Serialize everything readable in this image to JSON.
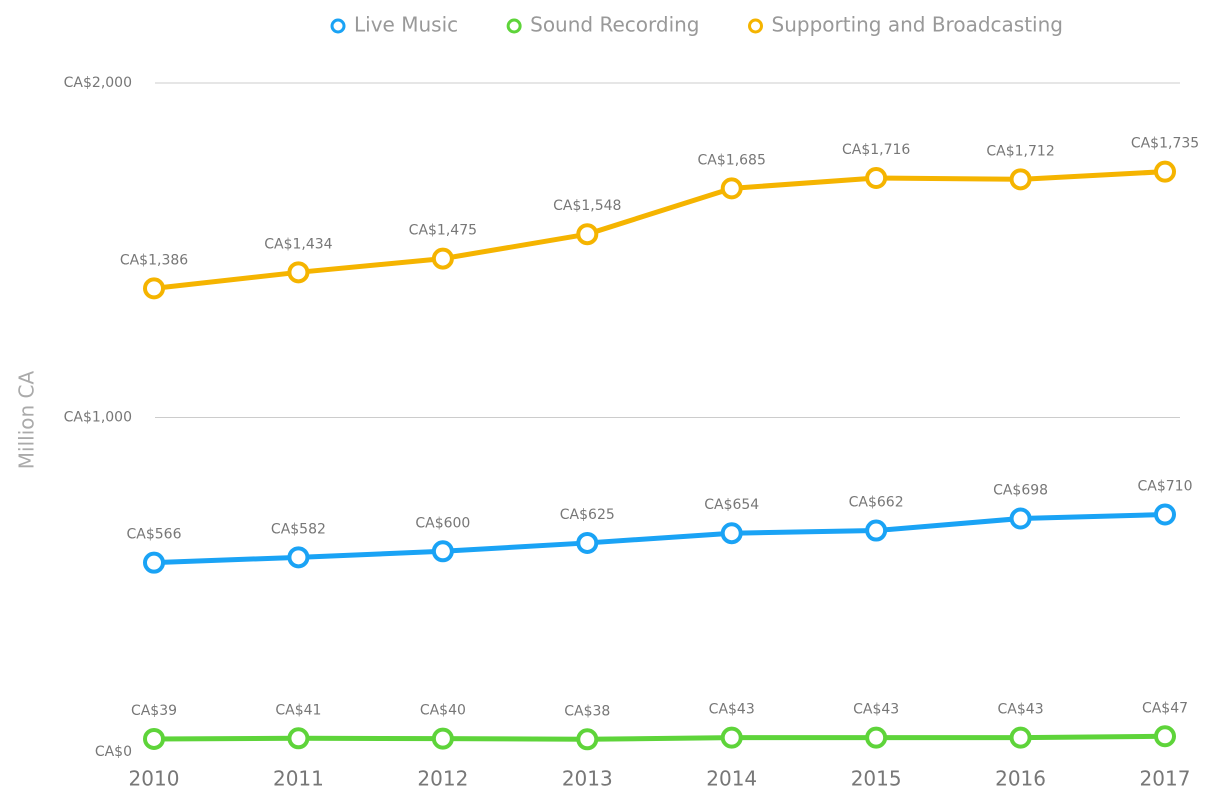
{
  "chart_data": {
    "type": "line",
    "y_label": "Million CA",
    "x": [
      2010,
      2011,
      2012,
      2013,
      2014,
      2015,
      2016,
      2017
    ],
    "ylim": [
      0,
      2000
    ],
    "yticks": [
      {
        "value": 0,
        "label": "CA$0"
      },
      {
        "value": 1000,
        "label": "CA$1,000"
      },
      {
        "value": 2000,
        "label": "CA$2,000"
      }
    ],
    "grid": true,
    "legend": "top",
    "series": [
      {
        "name": "Live Music",
        "color": "#1aa3f5",
        "values": [
          566,
          582,
          600,
          625,
          654,
          662,
          698,
          710
        ],
        "value_labels": [
          "CA$566",
          "CA$582",
          "CA$600",
          "CA$625",
          "CA$654",
          "CA$662",
          "CA$698",
          "CA$710"
        ]
      },
      {
        "name": "Sound Recording",
        "color": "#5ed43a",
        "values": [
          39,
          41,
          40,
          38,
          43,
          43,
          43,
          47
        ],
        "value_labels": [
          "CA$39",
          "CA$41",
          "CA$40",
          "CA$38",
          "CA$43",
          "CA$43",
          "CA$43",
          "CA$47"
        ]
      },
      {
        "name": "Supporting and Broadcasting",
        "color": "#f5b400",
        "values": [
          1386,
          1434,
          1475,
          1548,
          1685,
          1716,
          1712,
          1735
        ],
        "value_labels": [
          "CA$1,386",
          "CA$1,434",
          "CA$1,475",
          "CA$1,548",
          "CA$1,685",
          "CA$1,716",
          "CA$1,712",
          "CA$1,735"
        ]
      }
    ]
  }
}
